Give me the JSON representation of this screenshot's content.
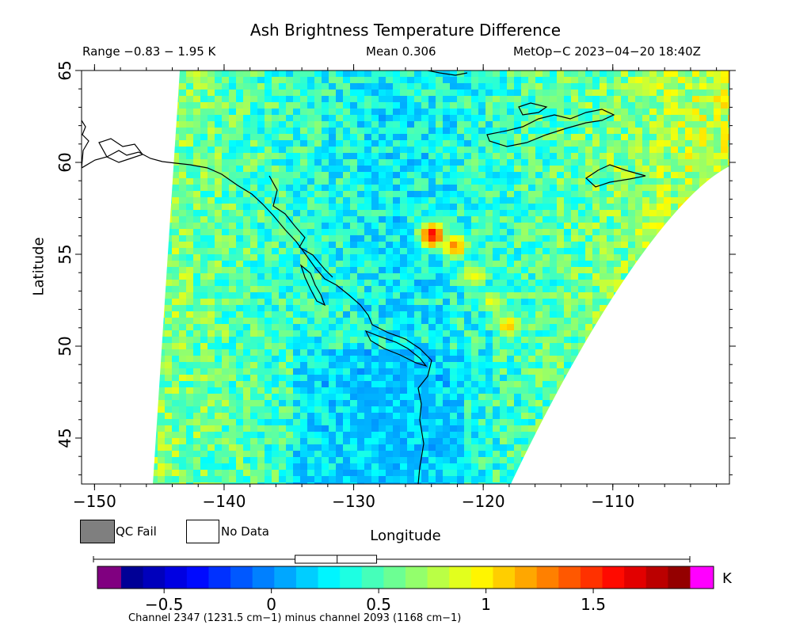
{
  "header": {
    "title": "Ash Brightness Temperature Difference",
    "range_text": "Range −0.83 − 1.95 K",
    "mean_text": "Mean 0.306",
    "satellite_text": "MetOp−C 2023−04−20 18:40Z"
  },
  "legend": {
    "qc_fail_label": "QC Fail",
    "no_data_label": "No Data",
    "qc_fail_color": "#7f7f7f",
    "no_data_color": "#ffffff"
  },
  "colorbar": {
    "unit": "K",
    "ticks": [
      {
        "value": -0.5,
        "label": "−0.5"
      },
      {
        "value": 0,
        "label": "0"
      },
      {
        "value": 0.5,
        "label": "0.5"
      },
      {
        "value": 1,
        "label": "1"
      },
      {
        "value": 1.5,
        "label": "1.5"
      }
    ],
    "vmin": -0.7,
    "vmax": 1.95,
    "underflow_color": "#800080",
    "overflow_color": "#ff00ff",
    "footnote": "Channel 2347 (1231.5 cm−1) minus channel 2093 (1168 cm−1)",
    "boxplot": {
      "min": -0.83,
      "q1": 0.11,
      "median": 0.306,
      "q3": 0.49,
      "max": 1.95
    }
  },
  "chart_data": {
    "type": "heatmap",
    "title": "Ash Brightness Temperature Difference",
    "xlabel": "Longitude",
    "ylabel": "Latitude",
    "xlim": [
      -151,
      -101
    ],
    "ylim": [
      42.5,
      65
    ],
    "x_ticks": [
      {
        "value": -150,
        "label": "−150"
      },
      {
        "value": -140,
        "label": "−140"
      },
      {
        "value": -130,
        "label": "−130"
      },
      {
        "value": -120,
        "label": "−120"
      },
      {
        "value": -110,
        "label": "−110"
      }
    ],
    "y_ticks": [
      {
        "value": 45,
        "label": "45"
      },
      {
        "value": 50,
        "label": "50"
      },
      {
        "value": 55,
        "label": "55"
      },
      {
        "value": 60,
        "label": "60"
      },
      {
        "value": 65,
        "label": "65"
      }
    ],
    "value_range": [
      -0.83,
      1.95
    ],
    "mean": 0.306,
    "ash_plume": [
      {
        "lon": -124.2,
        "lat": 56.2,
        "value": 1.6
      },
      {
        "lon": -122.5,
        "lat": 55.6,
        "value": 1.3
      },
      {
        "lon": -121.0,
        "lat": 54.0,
        "value": 1.0
      },
      {
        "lon": -119.5,
        "lat": 52.6,
        "value": 0.95
      },
      {
        "lon": -118.3,
        "lat": 51.3,
        "value": 1.1
      }
    ]
  }
}
